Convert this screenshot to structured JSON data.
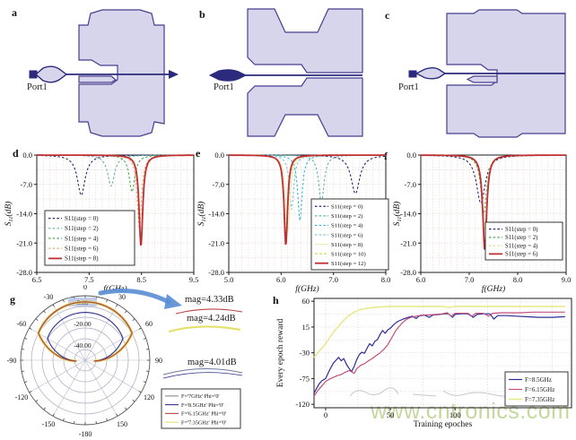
{
  "panel_letters": {
    "a": "a",
    "b": "b",
    "c": "c",
    "d": "d",
    "e": "e",
    "f": "f",
    "g": "g",
    "h": "h"
  },
  "diagrams": {
    "port_label": "Port1"
  },
  "colors": {
    "lavender": "#d7d5ec",
    "purple": "#463d8e",
    "navy": "#2c2a7c",
    "ink": "#1c1c1c",
    "grid_pink": "#e7c6c6",
    "grid_h": "#cfc2cf",
    "arrow_blue": "#5b8fd4",
    "watermark_green": "#bdd492"
  },
  "watermark_text": "www.cntronics.com",
  "annotations": [
    {
      "text": "mag=4.33dB",
      "color": "#b84444"
    },
    {
      "text": "mag=4.24dB",
      "color": "#e3e06e"
    },
    {
      "text": "mag=4.01dB",
      "color": "#6a7a9a"
    }
  ],
  "chart_data": [
    {
      "id": "d",
      "type": "line",
      "title": "",
      "xlabel": "f(GHz)",
      "ylabel": "S11(dB)",
      "xlim": [
        6.5,
        9.5
      ],
      "ylim": [
        -28,
        0
      ],
      "label_italic": true,
      "grid": true,
      "legend_pos": "bottom-left",
      "xticks": [
        6.5,
        7.5,
        8.5,
        9.5
      ],
      "xtick_labels": [
        "6.5",
        "7.5",
        "8.5",
        "9.5"
      ],
      "yticks": [
        0,
        -7,
        -14,
        -21,
        -28
      ],
      "ytick_labels": [
        "0.0",
        "-7.0",
        "-14.0",
        "-21.0",
        "-28.0"
      ],
      "series": [
        {
          "name": "S11(step = 0)",
          "color": "#27276e",
          "dash": "2.5,2.2",
          "f0": 7.35,
          "min_db": -9.6,
          "w": 0.09
        },
        {
          "name": "S11(step = 2)",
          "color": "#5cb3ab",
          "dash": "2.5,2.2",
          "f0": 7.92,
          "min_db": -7.4,
          "w": 0.08
        },
        {
          "name": "S11(step = 4)",
          "color": "#53a653",
          "dash": "2.5,2.2",
          "f0": 8.32,
          "min_db": -8.8,
          "w": 0.065
        },
        {
          "name": "S11(step = 6)",
          "color": "#e0a86a",
          "dash": "2.5,2.2",
          "f0": 8.46,
          "min_db": -17.5,
          "w": 0.05
        },
        {
          "name": "S11(step = 8)",
          "color": "#bf2f2f",
          "width": 1.8,
          "f0": 8.49,
          "min_db": -21.8,
          "w": 0.042
        }
      ]
    },
    {
      "id": "e",
      "type": "line",
      "title": "",
      "xlabel": "f(GHz)",
      "ylabel": "S11(dB)",
      "xlim": [
        5,
        8
      ],
      "ylim": [
        -28,
        0
      ],
      "label_italic": true,
      "grid": true,
      "legend_pos": "mid-right",
      "xticks": [
        5,
        6,
        7,
        8
      ],
      "xtick_labels": [
        "5.0",
        "6.0",
        "7.0",
        "8.0"
      ],
      "yticks": [
        0,
        -7,
        -14,
        -21,
        -28
      ],
      "ytick_labels": [
        "0.0",
        "-7.0",
        "-14.0",
        "-21.0",
        "-28.0"
      ],
      "series": [
        {
          "name": "S11(step = 0)",
          "color": "#27276e",
          "dash": "2.5,2.2",
          "f0": 7.42,
          "min_db": -9.2,
          "w": 0.1
        },
        {
          "name": "S11(step = 2)",
          "color": "#5cb3ab",
          "dash": "2.5,2.2",
          "f0": 6.77,
          "min_db": -11.6,
          "w": 0.06
        },
        {
          "name": "S11(step = 4)",
          "color": "#37b9c9",
          "dash": "2.5,2.2",
          "f0": 6.36,
          "min_db": -15.6,
          "w": 0.05
        },
        {
          "name": "S11(step = 6)",
          "color": "#86c2e0",
          "dash": "2.5,2.2",
          "f0": 6.2,
          "min_db": -13,
          "w": 0.05
        },
        {
          "name": "S11(step = 8)",
          "color": "#efe9b8",
          "f0": 6.13,
          "min_db": -18,
          "w": 0.05
        },
        {
          "name": "S11(step = 10)",
          "color": "#ddd35e",
          "dash": "3,2",
          "f0": 6.1,
          "min_db": -20,
          "w": 0.045
        },
        {
          "name": "S11(step = 12)",
          "color": "#bf2f2f",
          "width": 1.8,
          "f0": 6.09,
          "min_db": -21.6,
          "w": 0.04
        }
      ]
    },
    {
      "id": "f",
      "type": "line",
      "title": "",
      "xlabel": "f(GHz)",
      "ylabel": "S11(dB)",
      "xlim": [
        6,
        9
      ],
      "ylim": [
        -28,
        0
      ],
      "label_italic": true,
      "grid": true,
      "legend_pos": "bottom-right",
      "xticks": [
        6,
        7,
        8,
        9
      ],
      "xtick_labels": [
        "6.0",
        "7.0",
        "8.0",
        "9.0"
      ],
      "yticks": [
        0,
        -7,
        -14,
        -21,
        -28
      ],
      "ytick_labels": [
        "0.0",
        "-7.0",
        "-14.0",
        "-21.0",
        "-28.0"
      ],
      "series": [
        {
          "name": "S11(step = 0)",
          "color": "#27276e",
          "dash": "2.5,2.2",
          "f0": 7.24,
          "min_db": -11.5,
          "w": 0.11
        },
        {
          "name": "S11(step = 2)",
          "color": "#53a653",
          "dash": "2.5,2.2",
          "f0": 7.3,
          "min_db": -14,
          "w": 0.07
        },
        {
          "name": "S11(step = 4)",
          "color": "#e3df8e",
          "dash": "2.5,2.2",
          "f0": 7.31,
          "min_db": -18,
          "w": 0.055
        },
        {
          "name": "S11(step = 6)",
          "color": "#bf2f2f",
          "width": 1.8,
          "f0": 7.32,
          "min_db": -22.6,
          "w": 0.05
        }
      ]
    },
    {
      "id": "g",
      "type": "polar",
      "angle_labels": [
        {
          "angle": 0,
          "label": "0"
        },
        {
          "angle": 30,
          "label": "30"
        },
        {
          "angle": 60,
          "label": "60"
        },
        {
          "angle": 90,
          "label": "90"
        },
        {
          "angle": 120,
          "label": "120"
        },
        {
          "angle": 150,
          "label": "150"
        },
        {
          "angle": 180,
          "label": "-180"
        },
        {
          "angle": -150,
          "label": "-150"
        },
        {
          "angle": -120,
          "label": "-120"
        },
        {
          "angle": -90,
          "label": "-90"
        },
        {
          "angle": -60,
          "label": "-60"
        },
        {
          "angle": -30,
          "label": "-30"
        }
      ],
      "r_axis": {
        "max_db": 10,
        "min_db": -50,
        "ring_step_db": 10,
        "labels": [
          {
            "db": 0,
            "text": "0.00"
          },
          {
            "db": -20,
            "text": "-20.00"
          },
          {
            "db": -40,
            "text": "-40.00"
          }
        ]
      },
      "series": [
        {
          "name": "F='7GHz' Phi='0'",
          "color": "#8a8a8a",
          "mag_db": 4.01,
          "width": 0.9
        },
        {
          "name": "F='8.5GHz' Phi='0'",
          "color": "#31308a",
          "mag_db": -5.5,
          "width": 1.1
        },
        {
          "name": "F='6.15GHz' Phi='0'",
          "color": "#b84444",
          "mag_db": 4.33,
          "width": 1.1
        },
        {
          "name": "F='7.35GHz' Phi='0'",
          "color": "#e3e06e",
          "mag_db": 4.24,
          "width": 3.2
        }
      ]
    },
    {
      "id": "h",
      "type": "line",
      "title": "",
      "xlabel": "Training epoches",
      "ylabel": "Every epoch reward",
      "xlim": [
        -9,
        190
      ],
      "ylim": [
        -126,
        65
      ],
      "label_italic": false,
      "grid": true,
      "legend_pos": "bottom-right",
      "xticks": [
        0,
        50,
        100
      ],
      "xtick_labels": [
        "0",
        "50",
        "100"
      ],
      "yticks": [
        60,
        15,
        -30,
        -75,
        -120
      ],
      "ytick_labels": [
        "60",
        "15",
        "-30",
        "-75",
        "-120"
      ],
      "series": [
        {
          "name": "F=8.5GHz",
          "color": "#2d2d96",
          "width": 1.2,
          "points": [
            [
              -9,
              -101
            ],
            [
              -7,
              -92
            ],
            [
              -5,
              -84
            ],
            [
              -3,
              -79
            ],
            [
              0,
              -75
            ],
            [
              2,
              -65
            ],
            [
              4,
              -56
            ],
            [
              6,
              -48
            ],
            [
              8,
              -43
            ],
            [
              10,
              -38
            ],
            [
              12,
              -44
            ],
            [
              14,
              -40
            ],
            [
              16,
              -50
            ],
            [
              18,
              -57
            ],
            [
              20,
              -63
            ],
            [
              22,
              -54
            ],
            [
              24,
              -42
            ],
            [
              26,
              -33
            ],
            [
              28,
              -29
            ],
            [
              30,
              -31
            ],
            [
              32,
              -22
            ],
            [
              34,
              -14
            ],
            [
              36,
              -18
            ],
            [
              38,
              -10
            ],
            [
              40,
              -7
            ],
            [
              42,
              2
            ],
            [
              44,
              9
            ],
            [
              46,
              4
            ],
            [
              48,
              10
            ],
            [
              50,
              13
            ],
            [
              53,
              20
            ],
            [
              56,
              25
            ],
            [
              60,
              29
            ],
            [
              64,
              32
            ],
            [
              67,
              34
            ],
            [
              70,
              30
            ],
            [
              72,
              34
            ],
            [
              76,
              36
            ],
            [
              80,
              32
            ],
            [
              83,
              36
            ],
            [
              88,
              37
            ],
            [
              92,
              38
            ],
            [
              95,
              38
            ],
            [
              98,
              32
            ],
            [
              100,
              37
            ],
            [
              105,
              38
            ],
            [
              110,
              38
            ],
            [
              114,
              32
            ],
            [
              117,
              37
            ],
            [
              122,
              38
            ],
            [
              127,
              38
            ],
            [
              130,
              29
            ],
            [
              133,
              35
            ],
            [
              140,
              35
            ],
            [
              147,
              34
            ],
            [
              155,
              33
            ],
            [
              165,
              32
            ],
            [
              175,
              32
            ],
            [
              185,
              33
            ]
          ]
        },
        {
          "name": "F=6.15GHz",
          "color": "#c2507c",
          "width": 1.2,
          "points": [
            [
              -9,
              -106
            ],
            [
              -6,
              -96
            ],
            [
              -3,
              -88
            ],
            [
              0,
              -80
            ],
            [
              3,
              -76
            ],
            [
              6,
              -73
            ],
            [
              9,
              -70
            ],
            [
              12,
              -68
            ],
            [
              15,
              -64
            ],
            [
              18,
              -61
            ],
            [
              20,
              -63
            ],
            [
              22,
              -66
            ],
            [
              24,
              -58
            ],
            [
              27,
              -52
            ],
            [
              30,
              -49
            ],
            [
              33,
              -44
            ],
            [
              36,
              -40
            ],
            [
              39,
              -35
            ],
            [
              42,
              -30
            ],
            [
              45,
              -24
            ],
            [
              48,
              -16
            ],
            [
              50,
              -8
            ],
            [
              52,
              0
            ],
            [
              54,
              8
            ],
            [
              56,
              14
            ],
            [
              58,
              19
            ],
            [
              60,
              24
            ],
            [
              63,
              29
            ],
            [
              66,
              32
            ],
            [
              70,
              34
            ],
            [
              75,
              36
            ],
            [
              80,
              36
            ],
            [
              85,
              37
            ],
            [
              90,
              38
            ],
            [
              94,
              40
            ],
            [
              97,
              34
            ],
            [
              100,
              39
            ],
            [
              105,
              39
            ],
            [
              110,
              39
            ],
            [
              113,
              34
            ],
            [
              116,
              39
            ],
            [
              122,
              39
            ],
            [
              126,
              34
            ],
            [
              129,
              39
            ],
            [
              136,
              40
            ],
            [
              143,
              40
            ],
            [
              150,
              40
            ],
            [
              160,
              41
            ],
            [
              170,
              41
            ],
            [
              180,
              41
            ],
            [
              185,
              41
            ]
          ]
        },
        {
          "name": "F=7.35GHz",
          "color": "#e9e98c",
          "width": 1.6,
          "points": [
            [
              -9,
              -38
            ],
            [
              -6,
              -30
            ],
            [
              -3,
              -22
            ],
            [
              0,
              -14
            ],
            [
              3,
              -4
            ],
            [
              6,
              6
            ],
            [
              9,
              14
            ],
            [
              12,
              22
            ],
            [
              15,
              29
            ],
            [
              18,
              35
            ],
            [
              22,
              41
            ],
            [
              26,
              45
            ],
            [
              30,
              47
            ],
            [
              36,
              49
            ],
            [
              42,
              50
            ],
            [
              50,
              51
            ],
            [
              60,
              51
            ],
            [
              70,
              51
            ],
            [
              80,
              51
            ],
            [
              90,
              51
            ],
            [
              95,
              49
            ],
            [
              100,
              51
            ],
            [
              115,
              51
            ],
            [
              130,
              51
            ],
            [
              145,
              51
            ],
            [
              160,
              51
            ],
            [
              175,
              51
            ],
            [
              185,
              51
            ]
          ]
        }
      ]
    }
  ]
}
